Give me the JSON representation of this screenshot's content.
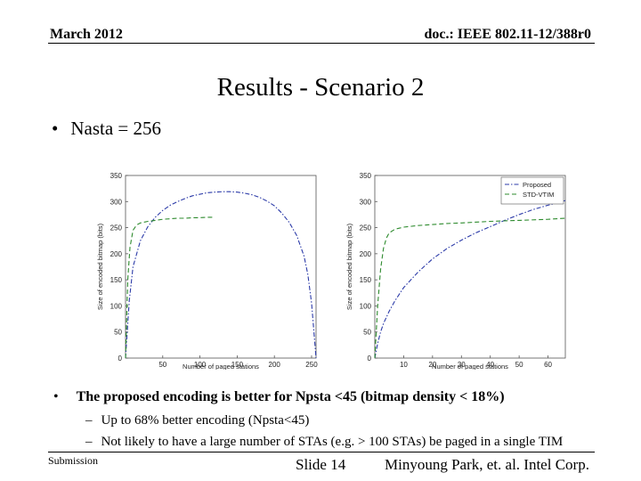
{
  "header": {
    "date": "March 2012",
    "doc": "doc.: IEEE 802.11-12/388r0"
  },
  "title": "Results - Scenario 2",
  "bullets": {
    "nasta": "Nasta = 256",
    "main": "The proposed encoding is better for Npsta <45 (bitmap density < 18%)",
    "subs": [
      "Up to 68% better encoding (Npsta<45)",
      "Not likely to have a large number of STAs (e.g. > 100 STAs) be paged in a single TIM"
    ]
  },
  "footer": {
    "left": "Submission",
    "slide": "Slide 14",
    "author": "Minyoung Park, et. al. Intel Corp."
  },
  "chart_data": [
    {
      "type": "line",
      "xlabel": "Number of paged stations",
      "ylabel": "Size of encoded bitmap (bits)",
      "xlim": [
        0,
        256
      ],
      "ylim": [
        0,
        350
      ],
      "xticks": [
        50,
        100,
        150,
        200,
        250
      ],
      "yticks": [
        0,
        50,
        100,
        150,
        200,
        250,
        300,
        350
      ],
      "grid": false,
      "series": [
        {
          "color": "#2b3aa8",
          "dash": "dashdot",
          "x": [
            0,
            5,
            10,
            20,
            30,
            40,
            50,
            60,
            70,
            80,
            90,
            100,
            110,
            120,
            130,
            140,
            150,
            160,
            170,
            180,
            190,
            200,
            210,
            220,
            230,
            240,
            245,
            250,
            256
          ],
          "y": [
            0,
            110,
            175,
            225,
            252,
            270,
            283,
            293,
            300,
            306,
            311,
            314,
            317,
            318,
            319,
            319,
            318,
            316,
            313,
            308,
            301,
            292,
            278,
            260,
            235,
            195,
            160,
            105,
            0
          ]
        },
        {
          "color": "#2e8b2e",
          "dash": "dashed",
          "x": [
            0,
            3,
            6,
            10,
            15,
            20,
            30,
            40,
            50,
            60,
            70,
            80,
            90,
            100,
            110,
            120
          ],
          "y": [
            0,
            150,
            212,
            245,
            255,
            259,
            262,
            264,
            266,
            267,
            268,
            268,
            269,
            269,
            270,
            270
          ]
        }
      ]
    },
    {
      "type": "line",
      "xlabel": "Number of paged stations",
      "ylabel": "Size of encoded bitmap (bits)",
      "xlim": [
        0,
        66
      ],
      "ylim": [
        0,
        350
      ],
      "xticks": [
        10,
        20,
        30,
        40,
        50,
        60
      ],
      "yticks": [
        0,
        50,
        100,
        150,
        200,
        250,
        300,
        350
      ],
      "grid": false,
      "legend": "top-right",
      "series": [
        {
          "name": "Proposed",
          "color": "#2b3aa8",
          "dash": "dashdot",
          "x": [
            0,
            1,
            2,
            3,
            5,
            7,
            10,
            15,
            20,
            25,
            30,
            35,
            40,
            45,
            50,
            55,
            60,
            66
          ],
          "y": [
            0,
            28,
            50,
            66,
            90,
            110,
            135,
            165,
            190,
            210,
            226,
            240,
            252,
            264,
            275,
            285,
            293,
            302
          ]
        },
        {
          "name": "STD-VTIM",
          "color": "#2e8b2e",
          "dash": "dashed",
          "x": [
            0,
            1,
            2,
            3,
            4,
            5,
            7,
            10,
            15,
            20,
            25,
            30,
            40,
            50,
            60,
            66
          ],
          "y": [
            0,
            100,
            170,
            210,
            230,
            240,
            247,
            251,
            254,
            256,
            258,
            259,
            262,
            264,
            266,
            268
          ]
        }
      ]
    }
  ]
}
